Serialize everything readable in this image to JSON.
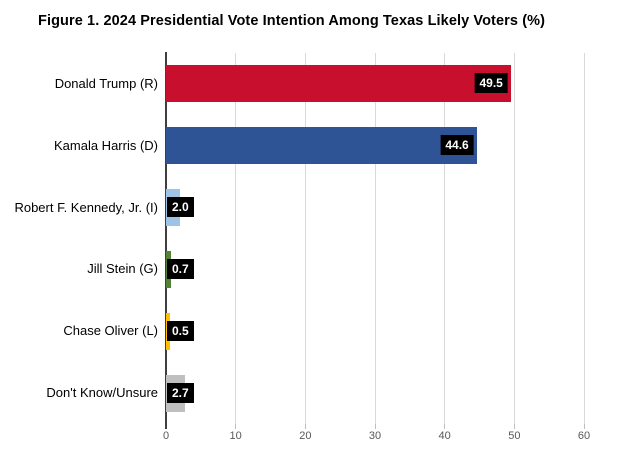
{
  "figure": {
    "title": "Figure 1. 2024 Presidential Vote Intention Among Texas Likely Voters (%)"
  },
  "chart_data": {
    "type": "bar",
    "orientation": "horizontal",
    "title": "Figure 1. 2024 Presidential Vote Intention Among Texas Likely Voters (%)",
    "categories": [
      "Donald Trump (R)",
      "Kamala Harris (D)",
      "Robert F. Kennedy, Jr. (I)",
      "Jill Stein (G)",
      "Chase Oliver (L)",
      "Don't Know/Unsure"
    ],
    "values": [
      49.5,
      44.6,
      2.0,
      0.7,
      0.5,
      2.7
    ],
    "value_labels": [
      "49.5",
      "44.6",
      "2.0",
      "0.7",
      "0.5",
      "2.7"
    ],
    "bar_colors": [
      "#c8102e",
      "#2f5496",
      "#9dc3e6",
      "#538135",
      "#ffc000",
      "#bfbfbf"
    ],
    "value_label_style": {
      "background": "#000000",
      "text": "#ffffff"
    },
    "xlabel": "",
    "ylabel": "",
    "xlim": [
      0,
      60
    ],
    "x_ticks": [
      "0",
      "10",
      "20",
      "30",
      "40",
      "50",
      "60"
    ],
    "grid": true,
    "gridline_color": "#d9d9d9",
    "axis_line_color": "#3f3f3f",
    "tick_label_color": "#595959",
    "legend": null
  }
}
